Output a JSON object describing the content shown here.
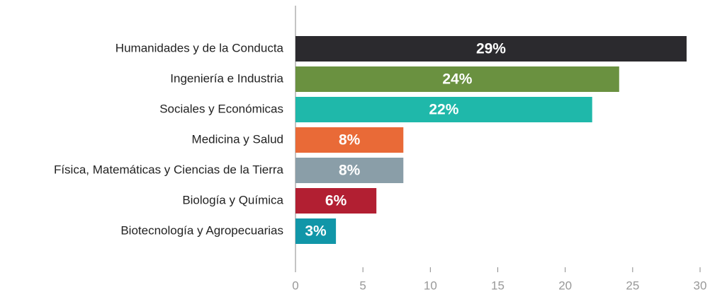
{
  "chart_data": {
    "type": "bar",
    "orientation": "horizontal",
    "categories": [
      "Humanidades y de la Conducta",
      "Ingeniería e Industria",
      "Sociales y Económicas",
      "Medicina y Salud",
      "Física, Matemáticas y Ciencias de la Tierra",
      "Biología y Química",
      "Biotecnología y Agropecuarias"
    ],
    "values": [
      29,
      24,
      22,
      8,
      8,
      6,
      3
    ],
    "value_labels": [
      "29%",
      "24%",
      "22%",
      "8%",
      "8%",
      "6%",
      "3%"
    ],
    "colors": [
      "#2b2a2e",
      "#6a9140",
      "#1fb8aa",
      "#e96a37",
      "#8a9ea8",
      "#b21f32",
      "#1196a8"
    ],
    "xlim": [
      0,
      30
    ],
    "xticks": [
      0,
      5,
      10,
      15,
      20,
      25,
      30
    ],
    "grid": false
  }
}
